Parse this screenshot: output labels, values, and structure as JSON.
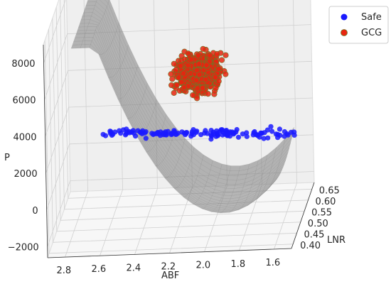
{
  "chart_data": {
    "type": "scatter",
    "projection": "3d",
    "xlabel": "ABF",
    "ylabel": "LNR",
    "zlabel": "P",
    "x_ticks": [
      "2.8",
      "2.6",
      "2.4",
      "2.2",
      "2.0",
      "1.8",
      "1.6"
    ],
    "y_ticks": [
      "0.40",
      "0.45",
      "0.50",
      "0.55",
      "0.60",
      "0.65"
    ],
    "z_ticks": [
      "−2000",
      "0",
      "2000",
      "4000",
      "6000",
      "8000"
    ],
    "x_range": [
      1.5,
      2.9
    ],
    "y_range": [
      0.38,
      0.68
    ],
    "z_range": [
      -2600,
      9000
    ],
    "grid": true,
    "legend_position": "top-right",
    "surface": {
      "description_free": true,
      "color": "#808080",
      "opacity": 0.55
    },
    "series": [
      {
        "name": "Safe",
        "color": "#1a1aff",
        "count": 140,
        "abf_range": [
          1.6,
          2.6
        ],
        "lnr_range": [
          0.45,
          0.66
        ],
        "p_range": [
          300,
          3300
        ]
      },
      {
        "name": "GCG",
        "color": "#e8250f",
        "edge_color": "#6a7a2a",
        "count": 900,
        "abf_range": [
          1.75,
          2.45
        ],
        "lnr_range": [
          0.48,
          0.66
        ],
        "p_range": [
          3300,
          8600
        ]
      }
    ]
  }
}
